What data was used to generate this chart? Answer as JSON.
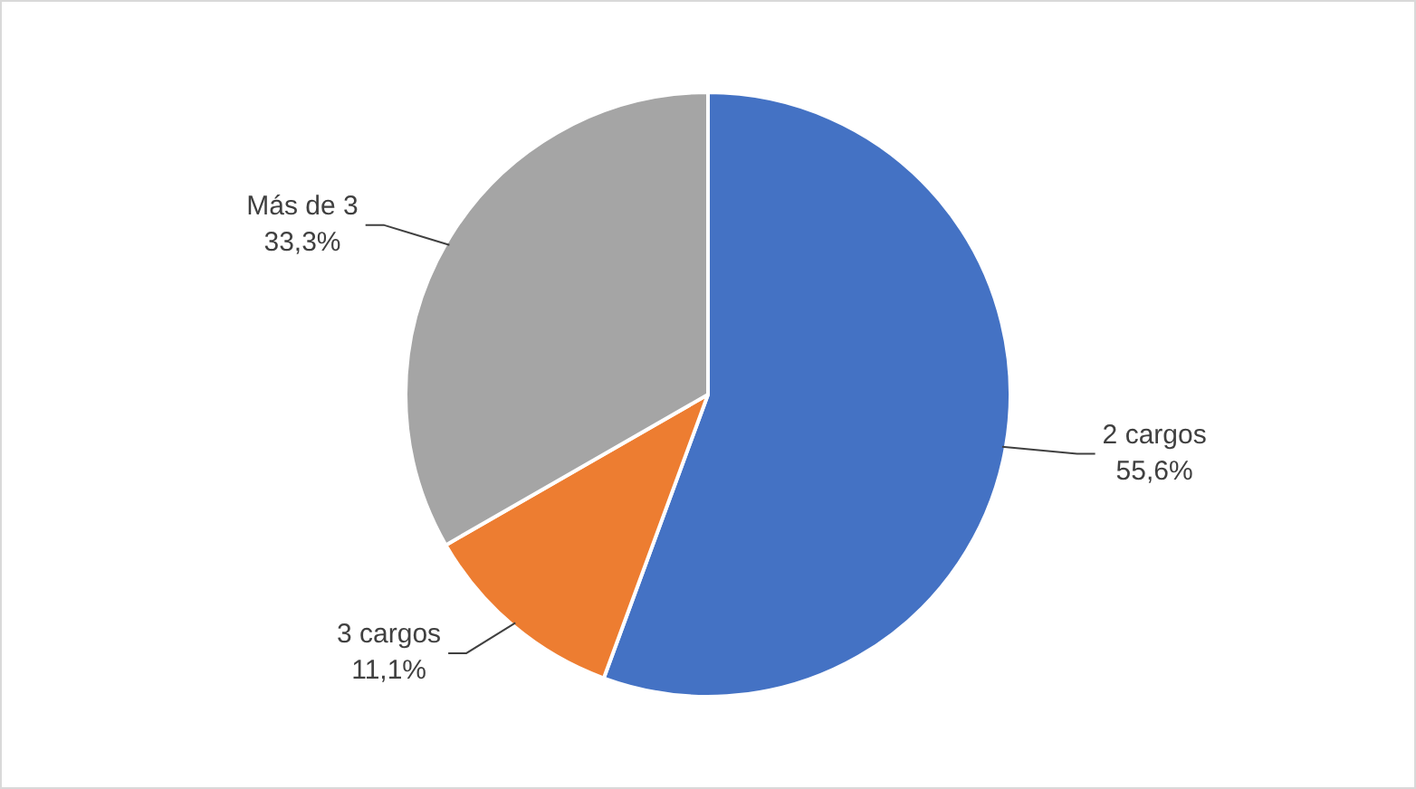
{
  "chart_data": {
    "type": "pie",
    "categories": [
      "2 cargos",
      "3 cargos",
      "Más de 3"
    ],
    "values": [
      55.6,
      11.1,
      33.3
    ],
    "colors": [
      "#4472c4",
      "#ed7d31",
      "#a5a5a5"
    ],
    "value_labels": [
      "55,6%",
      "11,1%",
      "33,3%"
    ],
    "legend": false
  }
}
